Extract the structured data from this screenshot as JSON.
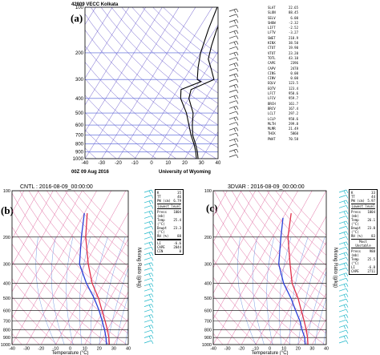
{
  "chart_data": [
    {
      "type": "line",
      "panel_label": "(a)",
      "header": "42809 VECC  Kolkata",
      "footer_left": "00Z 09 Aug 2016",
      "footer_right": "University of Wyoming",
      "xlim": [
        -40,
        40
      ],
      "ylim_hpa": [
        1000,
        100
      ],
      "x_ticks": [
        -40,
        -30,
        -20,
        -10,
        0,
        10,
        20,
        30,
        40
      ],
      "y_ticks": [
        100,
        200,
        300,
        400,
        500,
        600,
        700,
        800,
        900,
        1000
      ],
      "series": [
        {
          "name": "",
          "color": "#000000",
          "points": [
            [
              28,
              1000
            ],
            [
              25,
              900
            ],
            [
              21,
              800
            ],
            [
              16,
              700
            ],
            [
              12,
              600
            ],
            [
              8,
              500
            ],
            [
              0,
              400
            ],
            [
              -2,
              350
            ],
            [
              8,
              300
            ],
            [
              3,
              260
            ],
            [
              -3,
              220
            ],
            [
              -6,
              180
            ],
            [
              -9,
              140
            ],
            [
              -11,
              100
            ]
          ]
        },
        {
          "name": "",
          "color": "#000000",
          "points": [
            [
              27,
              1000
            ],
            [
              24,
              900
            ],
            [
              20,
              800
            ],
            [
              15,
              700
            ],
            [
              10,
              600
            ],
            [
              4,
              500
            ],
            [
              -5,
              400
            ],
            [
              -8,
              350
            ],
            [
              1,
              310
            ],
            [
              -2,
              300
            ],
            [
              -6,
              250
            ],
            [
              -10,
              200
            ],
            [
              -14,
              140
            ],
            [
              -17,
              100
            ]
          ]
        }
      ],
      "stats": [
        {
          "k": "SLAT",
          "v": "22.65"
        },
        {
          "k": "SLON",
          "v": "88.45"
        },
        {
          "k": "SELV",
          "v": "6.00"
        },
        {
          "k": "SHOW",
          "v": "-2.32"
        },
        {
          "k": "LIFT",
          "v": "-2.52"
        },
        {
          "k": "LFTV",
          "v": "-3.27"
        },
        {
          "k": "SWET",
          "v": "218.9"
        },
        {
          "k": "KINX",
          "v": "38.50"
        },
        {
          "k": "CTOT",
          "v": "19.90"
        },
        {
          "k": "VTOT",
          "v": "23.20"
        },
        {
          "k": "TOTL",
          "v": "43.10"
        },
        {
          "k": "CAPE",
          "v": "2396"
        },
        {
          "k": "CAPV",
          "v": "2478"
        },
        {
          "k": "CINS",
          "v": "0.00"
        },
        {
          "k": "CINV",
          "v": "0.00"
        },
        {
          "k": "EQLV",
          "v": "123.5"
        },
        {
          "k": "EQTV",
          "v": "123.4"
        },
        {
          "k": "LFCT",
          "v": "958.6"
        },
        {
          "k": "LFCV",
          "v": "959.7"
        },
        {
          "k": "BRCH",
          "v": "161.7"
        },
        {
          "k": "BRCV",
          "v": "167.4"
        },
        {
          "k": "LCLT",
          "v": "297.2"
        },
        {
          "k": "LCLP",
          "v": "958.6"
        },
        {
          "k": "MLTH",
          "v": "299.8"
        },
        {
          "k": "MLMR",
          "v": "21.49"
        },
        {
          "k": "THCK",
          "v": "5860"
        },
        {
          "k": "PWAT",
          "v": "70.58"
        }
      ]
    },
    {
      "type": "line",
      "panel_label": "(b)",
      "title": "CNTL : 2016-08-09_00:00:00",
      "xlabel": "Temperature (°C)",
      "side_label": "Mixing Ratio (g/kg)",
      "xlim": [
        -40,
        40
      ],
      "ylim_hpa": [
        1000,
        100
      ],
      "x_ticks": [
        -40,
        -30,
        -20,
        -10,
        0,
        10,
        20,
        30,
        40
      ],
      "y_ticks": [
        100,
        200,
        300,
        400,
        500,
        600,
        700,
        800,
        900,
        1000
      ],
      "series": [
        {
          "name": "",
          "color": "#e0304a",
          "points": [
            [
              27,
              1000
            ],
            [
              24,
              900
            ],
            [
              20,
              800
            ],
            [
              15,
              700
            ],
            [
              9,
              600
            ],
            [
              2,
              500
            ],
            [
              -8,
              400
            ],
            [
              -18,
              300
            ],
            [
              -30,
              200
            ],
            [
              -38,
              140
            ]
          ]
        },
        {
          "name": "",
          "color": "#2b3fd8",
          "points": [
            [
              25,
              1000
            ],
            [
              22,
              900
            ],
            [
              18,
              800
            ],
            [
              13,
              700
            ],
            [
              7,
              600
            ],
            [
              -1,
              500
            ],
            [
              -12,
              400
            ],
            [
              -24,
              300
            ],
            [
              -33,
              200
            ],
            [
              -40,
              140
            ]
          ]
        }
      ],
      "box": {
        "top": [
          {
            "k": "K",
            "v": "35"
          },
          {
            "k": "TT",
            "v": "46"
          },
          {
            "k": "PW (cm)",
            "v": "6.79"
          }
        ],
        "lowest_title": "Lowest level",
        "lowest": [
          {
            "k": "Press (mb)",
            "v": "1004"
          },
          {
            "k": "Temp (°C)",
            "v": "25.4"
          },
          {
            "k": "Dewpt (°C)",
            "v": "23.3"
          },
          {
            "k": "RH (%)",
            "v": "88"
          }
        ],
        "parcel": [
          {
            "k": "LI",
            "v": "-6.6"
          },
          {
            "k": "CAPE",
            "v": "2844"
          },
          {
            "k": "CIN",
            "v": "0"
          }
        ]
      }
    },
    {
      "type": "line",
      "panel_label": "(c)",
      "title": "3DVAR : 2016-08-09_00:00:00",
      "xlabel": "Temperature (°C)",
      "side_label": "Mixing Ratio (g/kg)",
      "xlim": [
        -40,
        40
      ],
      "ylim_hpa": [
        1000,
        100
      ],
      "x_ticks": [
        -40,
        -30,
        -20,
        -10,
        0,
        10,
        20,
        30,
        40
      ],
      "y_ticks": [
        100,
        200,
        300,
        400,
        500,
        600,
        700,
        800,
        900,
        1000
      ],
      "series": [
        {
          "name": "",
          "color": "#e0304a",
          "points": [
            [
              27,
              1000
            ],
            [
              24,
              900
            ],
            [
              20,
              800
            ],
            [
              15,
              700
            ],
            [
              9,
              600
            ],
            [
              2,
              500
            ],
            [
              -8,
              400
            ],
            [
              -17,
              300
            ],
            [
              -29,
              200
            ],
            [
              -36,
              140
            ]
          ]
        },
        {
          "name": "",
          "color": "#2b3fd8",
          "points": [
            [
              25,
              1000
            ],
            [
              22,
              900
            ],
            [
              17,
              800
            ],
            [
              12,
              700
            ],
            [
              5,
              600
            ],
            [
              -3,
              500
            ],
            [
              -14,
              400
            ],
            [
              -25,
              300
            ],
            [
              -34,
              200
            ],
            [
              -40,
              150
            ]
          ]
        }
      ],
      "box": {
        "top": [
          {
            "k": "K",
            "v": "33"
          },
          {
            "k": "TT",
            "v": "44"
          },
          {
            "k": "PW (cm)",
            "v": "5.97"
          }
        ],
        "lowest_title": "Lowest level",
        "lowest": [
          {
            "k": "Press (mb)",
            "v": "1004"
          },
          {
            "k": "Temp (°C)",
            "v": "26.1"
          },
          {
            "k": "Dewpt (°C)",
            "v": "23.0"
          },
          {
            "k": "RH (%)",
            "v": "83"
          }
        ],
        "parcel_title": "Most Unstable",
        "parcel": [
          {
            "k": "Press (mb)",
            "v": "988"
          },
          {
            "k": "Temp (°C)",
            "v": "25.5"
          },
          {
            "k": "LI",
            "v": "-6.8"
          },
          {
            "k": "CAPE",
            "v": "2711"
          }
        ]
      }
    }
  ]
}
